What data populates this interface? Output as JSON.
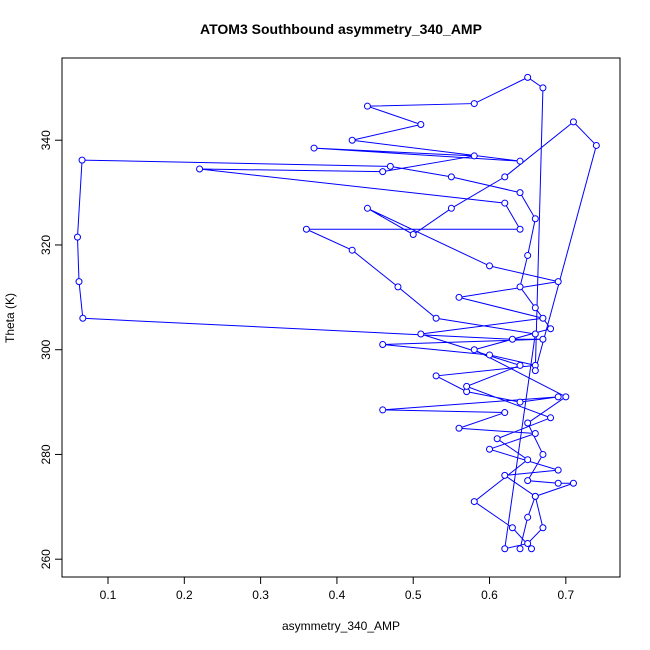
{
  "chart_data": {
    "type": "line-points",
    "title": "ATOM3 Southbound asymmetry_340_AMP",
    "x_label": "asymmetry_340_AMP",
    "y_label": "Theta (K)",
    "x": [
      0.64,
      0.65,
      0.66,
      0.62,
      0.69,
      0.6,
      0.66,
      0.56,
      0.62,
      0.46,
      0.69,
      0.64,
      0.57,
      0.53,
      0.66,
      0.6,
      0.46,
      0.67,
      0.63,
      0.067,
      0.062,
      0.06,
      0.066,
      0.47,
      0.55,
      0.64,
      0.66,
      0.65,
      0.64,
      0.66,
      0.68,
      0.58,
      0.7,
      0.65,
      0.67,
      0.65,
      0.69,
      0.71,
      0.66,
      0.67,
      0.65,
      0.62,
      0.66,
      0.53,
      0.48,
      0.42,
      0.36,
      0.64,
      0.62,
      0.22,
      0.46,
      0.58,
      0.37,
      0.64,
      0.42,
      0.51,
      0.44,
      0.58,
      0.65,
      0.67,
      0.66,
      0.74,
      0.71,
      0.62,
      0.55,
      0.5,
      0.44,
      0.6,
      0.69,
      0.56,
      0.67,
      0.51,
      0.64,
      0.57,
      0.68,
      0.61,
      0.65,
      0.58,
      0.63,
      0.655
    ],
    "series": [
      {
        "name": "Theta",
        "color": "#0000ff",
        "values": [
          262,
          268,
          272,
          276,
          277,
          281,
          284,
          285,
          288,
          288.5,
          291,
          290,
          292,
          295,
          297,
          299,
          301,
          302,
          302,
          306,
          313,
          321.5,
          336.2,
          335,
          333,
          330,
          325,
          318,
          312,
          308,
          304,
          300,
          291,
          286,
          280,
          275,
          274.5,
          274.5,
          272,
          266,
          263,
          262,
          303,
          306,
          312,
          319,
          323,
          323,
          328,
          334.5,
          334,
          337,
          338.5,
          336,
          340,
          343,
          346.5,
          347,
          352,
          350,
          296,
          339,
          343.5,
          333,
          327,
          322,
          327,
          316,
          313,
          310,
          306,
          303,
          297,
          293,
          287,
          283,
          279,
          271,
          266,
          262
        ]
      }
    ],
    "xlim": [
      0.0397,
      0.771
    ],
    "ylim": [
      256.6,
      355.7
    ],
    "xticks": [
      0.1,
      0.2,
      0.3,
      0.4,
      0.5,
      0.6,
      0.7
    ],
    "yticks": [
      260,
      280,
      300,
      320,
      340
    ]
  }
}
